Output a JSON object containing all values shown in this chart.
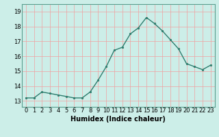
{
  "x": [
    0,
    1,
    2,
    3,
    4,
    5,
    6,
    7,
    8,
    9,
    10,
    11,
    12,
    13,
    14,
    15,
    16,
    17,
    18,
    19,
    20,
    21,
    22,
    23
  ],
  "y": [
    13.2,
    13.2,
    13.6,
    13.5,
    13.4,
    13.3,
    13.2,
    13.2,
    13.6,
    14.4,
    15.3,
    16.4,
    16.6,
    17.5,
    17.9,
    18.6,
    18.2,
    17.7,
    17.1,
    16.5,
    15.5,
    15.3,
    15.1,
    15.4
  ],
  "line_color": "#2e7d6e",
  "marker": "o",
  "marker_size": 1.8,
  "bg_color": "#cceee8",
  "grid_color": "#f0a0a0",
  "xlabel": "Humidex (Indice chaleur)",
  "xlabel_fontsize": 7,
  "tick_fontsize": 6,
  "ylim_min": 12.6,
  "ylim_max": 19.5,
  "xlim_min": -0.5,
  "xlim_max": 23.5,
  "yticks": [
    13,
    14,
    15,
    16,
    17,
    18,
    19
  ],
  "xticks": [
    0,
    1,
    2,
    3,
    4,
    5,
    6,
    7,
    8,
    9,
    10,
    11,
    12,
    13,
    14,
    15,
    16,
    17,
    18,
    19,
    20,
    21,
    22,
    23
  ],
  "spine_color": "#5a9e8e",
  "line_width": 1.0
}
